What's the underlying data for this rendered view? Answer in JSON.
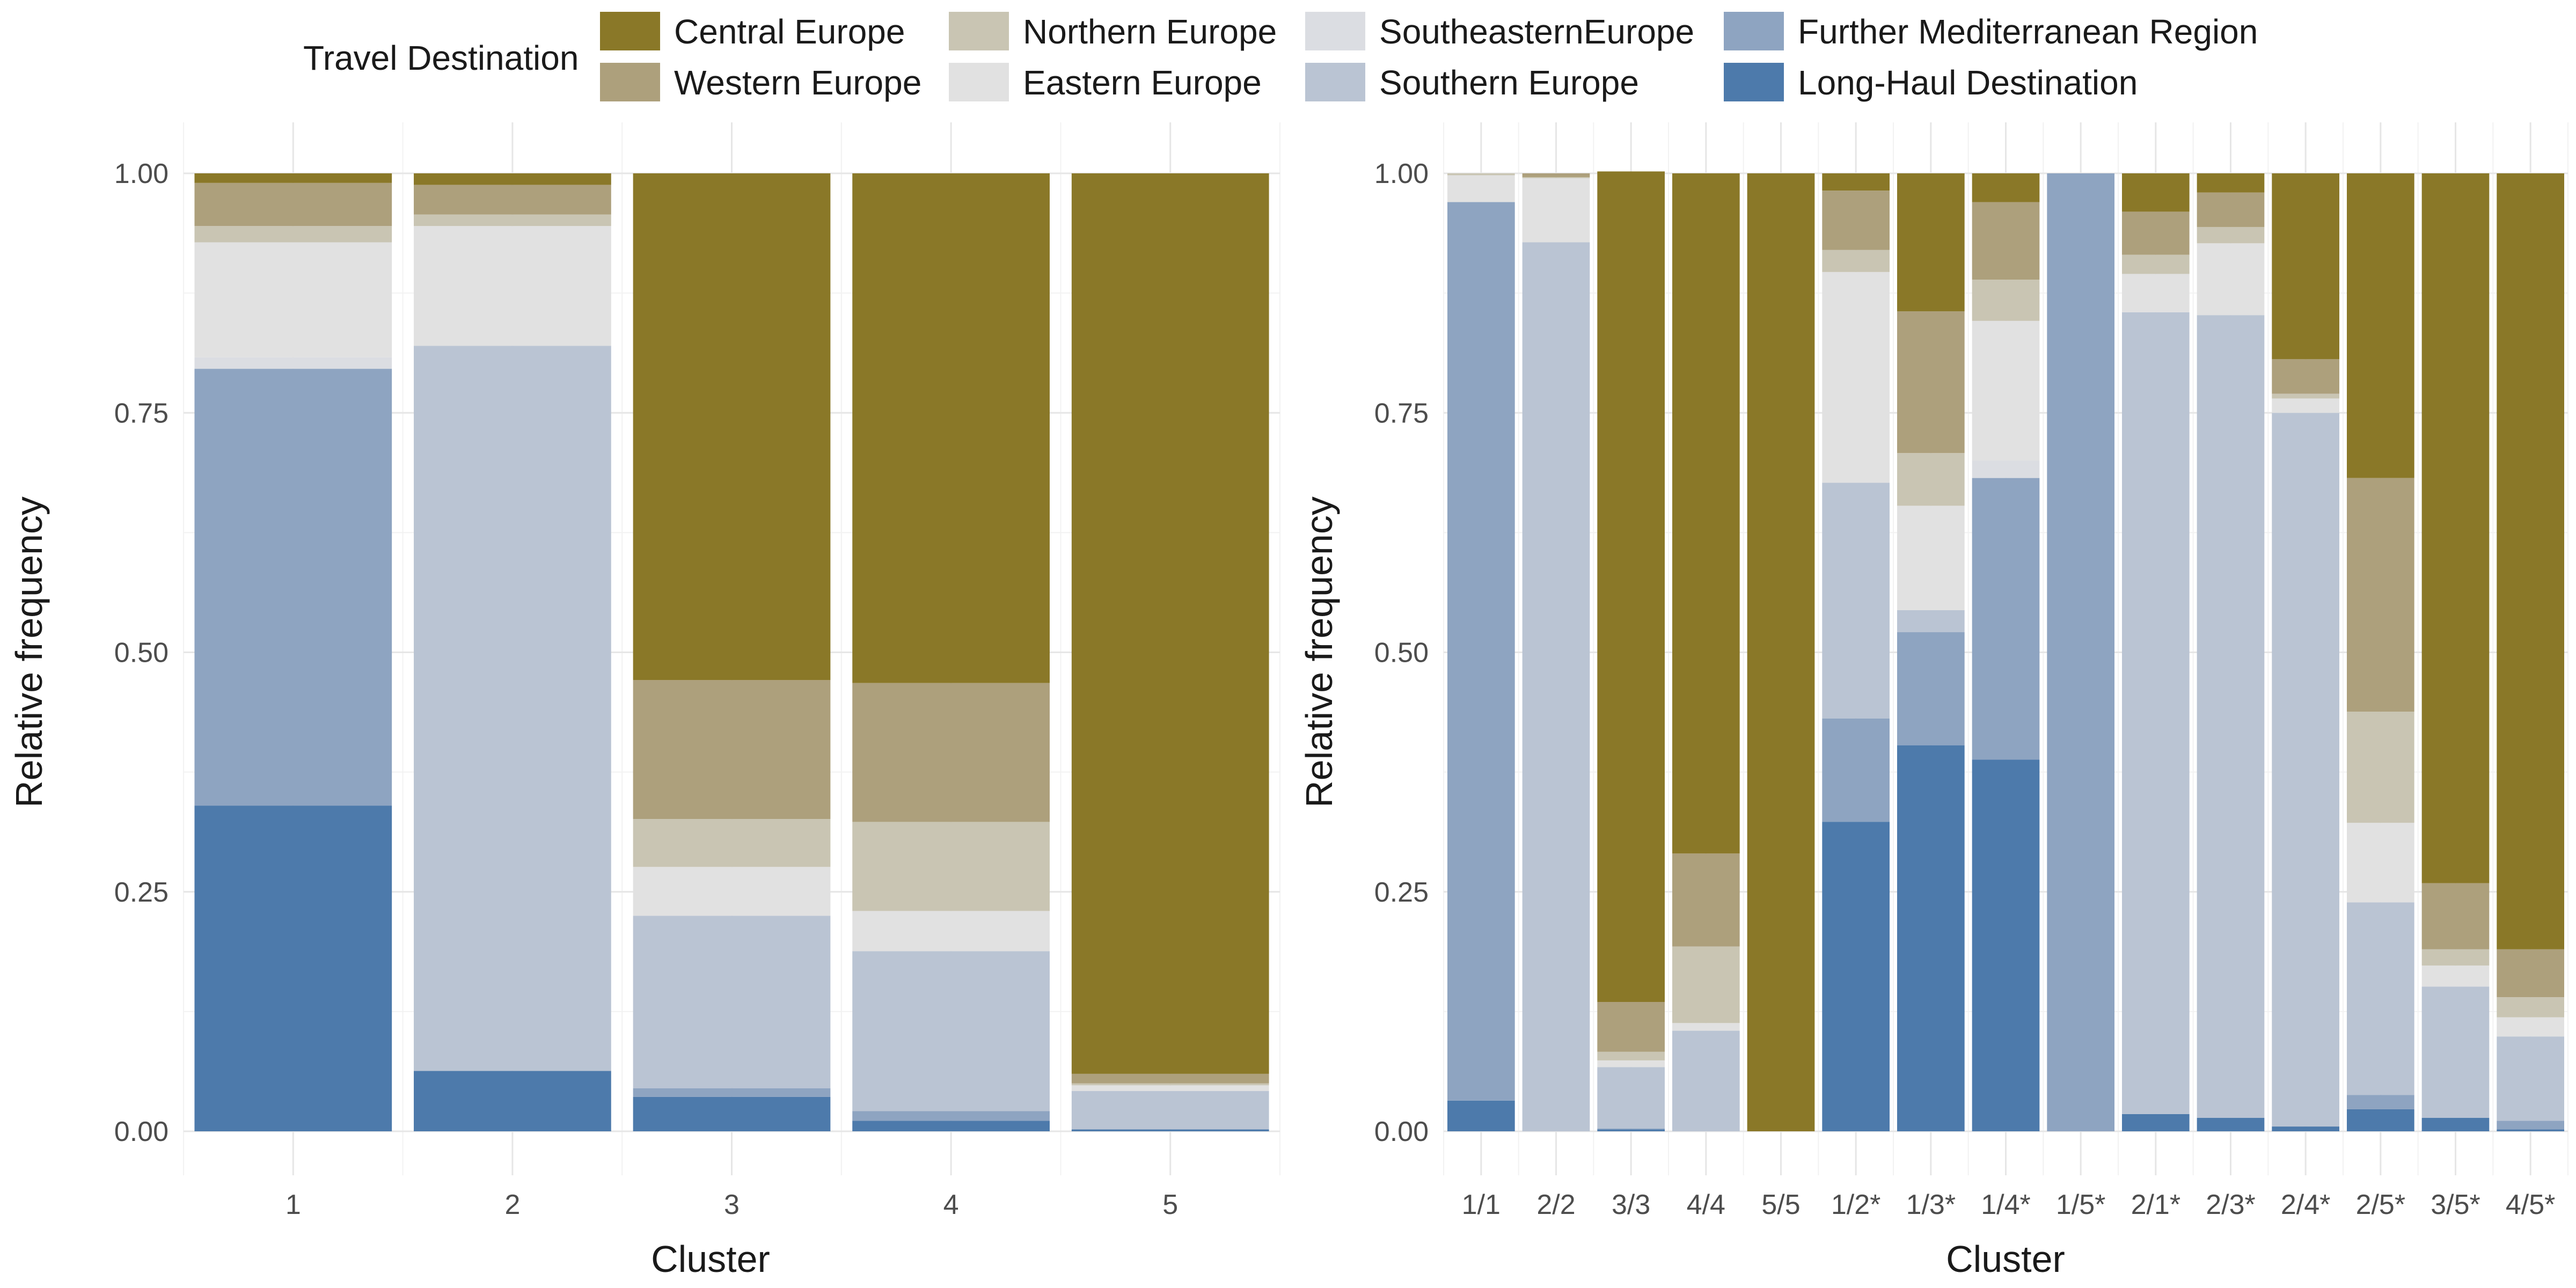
{
  "legend": {
    "title": "Travel Destination",
    "items": [
      {
        "name": "Central Europe",
        "color": "#8A7828"
      },
      {
        "name": "Western Europe",
        "color": "#ADA07C"
      },
      {
        "name": "Northern Europe",
        "color": "#C9C5B3"
      },
      {
        "name": "Eastern Europe",
        "color": "#E1E1E1"
      },
      {
        "name": "SoutheasternEurope",
        "color": "#DBDDE2"
      },
      {
        "name": "Southern Europe",
        "color": "#BAC4D3"
      },
      {
        "name": "Further Mediterranean Region",
        "color": "#8EA4C1"
      },
      {
        "name": "Long-Haul Destination",
        "color": "#4D7AAB"
      }
    ]
  },
  "chart_data": [
    {
      "type": "bar",
      "stacked": true,
      "xlabel": "Cluster",
      "ylabel": "Relative frequency",
      "ylim": [
        0,
        1
      ],
      "yticks": [
        "0.00",
        "0.25",
        "0.50",
        "0.75",
        "1.00"
      ],
      "categories": [
        "1",
        "2",
        "3",
        "4",
        "5"
      ],
      "series": [
        {
          "name": "Long-Haul Destination",
          "values": [
            0.34,
            0.063,
            0.036,
            0.011,
            0.002
          ]
        },
        {
          "name": "Further Mediterranean Region",
          "values": [
            0.456,
            0.0,
            0.009,
            0.01,
            0.0
          ]
        },
        {
          "name": "Southern Europe",
          "values": [
            0.0,
            0.757,
            0.18,
            0.167,
            0.04
          ]
        },
        {
          "name": "SoutheasternEurope",
          "values": [
            0.012,
            0.0,
            0.0,
            0.0,
            0.0
          ]
        },
        {
          "name": "Eastern Europe",
          "values": [
            0.12,
            0.125,
            0.051,
            0.042,
            0.006
          ]
        },
        {
          "name": "Northern Europe",
          "values": [
            0.017,
            0.012,
            0.05,
            0.093,
            0.002
          ]
        },
        {
          "name": "Western Europe",
          "values": [
            0.045,
            0.031,
            0.145,
            0.145,
            0.01
          ]
        },
        {
          "name": "Central Europe",
          "values": [
            0.01,
            0.012,
            0.529,
            0.532,
            0.94
          ]
        }
      ]
    },
    {
      "type": "bar",
      "stacked": true,
      "xlabel": "Cluster",
      "ylabel": "Relative frequency",
      "ylim": [
        0,
        1
      ],
      "yticks": [
        "0.00",
        "0.25",
        "0.50",
        "0.75",
        "1.00"
      ],
      "categories": [
        "1/1",
        "2/2",
        "3/3",
        "4/4",
        "5/5",
        "1/2*",
        "1/3*",
        "1/4*",
        "1/5*",
        "2/1*",
        "2/3*",
        "2/4*",
        "2/5*",
        "3/5*",
        "4/5*"
      ],
      "series": [
        {
          "name": "Long-Haul Destination",
          "values": [
            0.032,
            0.0,
            0.002,
            0.0,
            0.0,
            0.323,
            0.403,
            0.388,
            0.0,
            0.018,
            0.014,
            0.005,
            0.023,
            0.014,
            0.002
          ]
        },
        {
          "name": "Further Mediterranean Region",
          "values": [
            0.938,
            0.0,
            0.001,
            0.0,
            0.0,
            0.108,
            0.118,
            0.294,
            1.0,
            0.0,
            0.0,
            0.0,
            0.015,
            0.0,
            0.009
          ]
        },
        {
          "name": "Southern Europe",
          "values": [
            0.0,
            0.928,
            0.064,
            0.105,
            0.0,
            0.246,
            0.023,
            0.0,
            0.0,
            0.837,
            0.838,
            0.745,
            0.201,
            0.137,
            0.088
          ]
        },
        {
          "name": "SoutheasternEurope",
          "values": [
            0.0,
            0.0,
            0.0,
            0.0,
            0.0,
            0.0,
            0.0,
            0.018,
            0.0,
            0.0,
            0.0,
            0.0,
            0.0,
            0.0,
            0.0
          ]
        },
        {
          "name": "Eastern Europe",
          "values": [
            0.028,
            0.067,
            0.007,
            0.008,
            0.0,
            0.22,
            0.109,
            0.146,
            0.0,
            0.04,
            0.075,
            0.015,
            0.083,
            0.022,
            0.02
          ]
        },
        {
          "name": "Northern Europe",
          "values": [
            0.002,
            0.001,
            0.009,
            0.08,
            0.0,
            0.023,
            0.055,
            0.043,
            0.0,
            0.02,
            0.017,
            0.005,
            0.116,
            0.017,
            0.021
          ]
        },
        {
          "name": "Western Europe",
          "values": [
            0.0,
            0.004,
            0.052,
            0.097,
            0.0,
            0.062,
            0.148,
            0.081,
            0.0,
            0.045,
            0.036,
            0.036,
            0.244,
            0.069,
            0.05
          ]
        },
        {
          "name": "Central Europe",
          "values": [
            0.0,
            0.0,
            0.867,
            0.71,
            1.0,
            0.018,
            0.144,
            0.03,
            0.0,
            0.04,
            0.02,
            0.194,
            0.318,
            0.741,
            0.81
          ]
        }
      ]
    }
  ]
}
